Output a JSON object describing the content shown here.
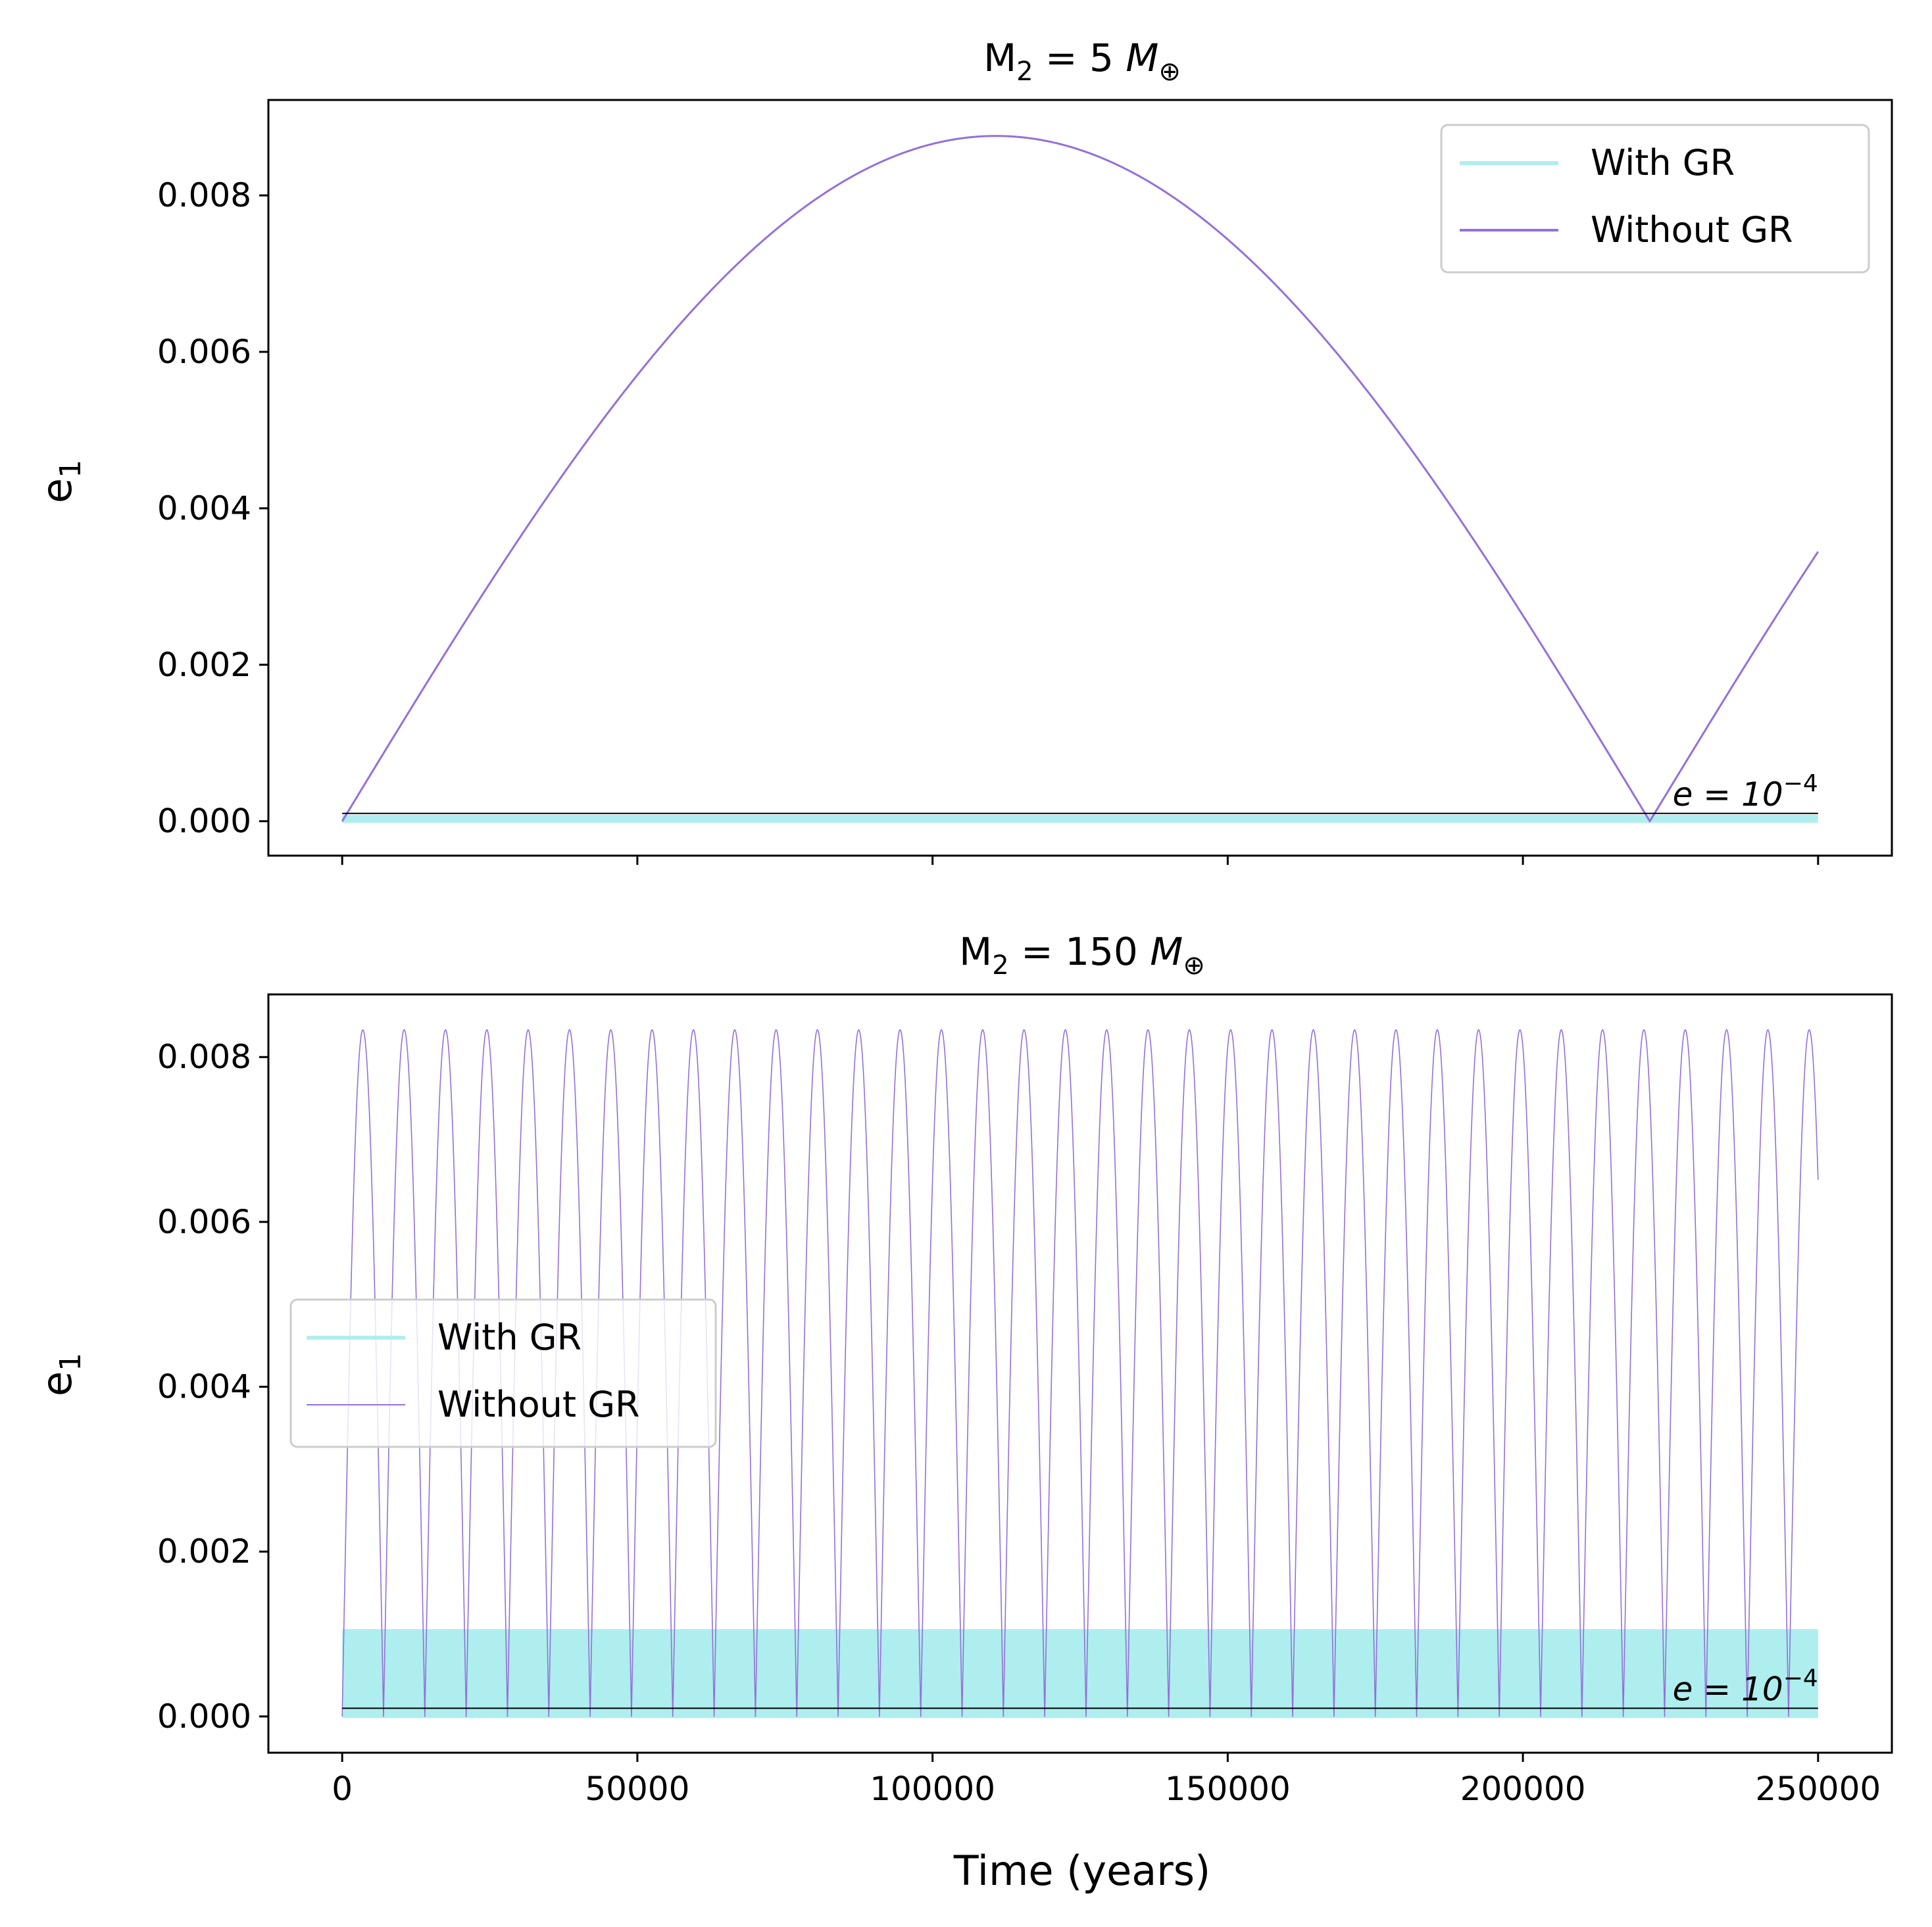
{
  "chart_data": [
    {
      "type": "line",
      "title": {
        "prefix": "M",
        "subscript": "2",
        "text": " = 5 ",
        "unit": "M",
        "unit_subscript": "⊕"
      },
      "ylabel": {
        "base": "e",
        "subscript": "1"
      },
      "xlabel": "",
      "xlim": [
        -12500,
        262500
      ],
      "ylim": [
        -0.00044,
        0.00922
      ],
      "x_ticks": [
        0,
        50000,
        100000,
        150000,
        200000,
        250000
      ],
      "x_tick_labels_visible": false,
      "y_ticks": [
        0.0,
        0.002,
        0.004,
        0.006,
        0.008
      ],
      "y_tick_labels": [
        "0.000",
        "0.002",
        "0.004",
        "0.006",
        "0.008"
      ],
      "legend": {
        "position": "upper right",
        "entries": [
          "With GR",
          "Without GR"
        ]
      },
      "colors": {
        "with_gr": "#afeeee",
        "without_gr": "#9370db",
        "threshold": "#000000"
      },
      "threshold": {
        "value": 0.0001,
        "label_base": "e = 10",
        "label_exp": "−4",
        "x_range": [
          0,
          250000
        ]
      },
      "series": [
        {
          "name": "With GR",
          "model": "band",
          "x_range": [
            0,
            250000
          ],
          "min": 0.0,
          "max": 6e-05,
          "line_width": 5
        },
        {
          "name": "Without GR",
          "model": "abs_sine",
          "x_range": [
            0,
            250000
          ],
          "amplitude": 0.00876,
          "period": 221500,
          "line_width": 3
        }
      ]
    },
    {
      "type": "line",
      "title": {
        "prefix": "M",
        "subscript": "2",
        "text": " = 150 ",
        "unit": "M",
        "unit_subscript": "⊕"
      },
      "ylabel": {
        "base": "e",
        "subscript": "1"
      },
      "xlabel": "Time (years)",
      "xlim": [
        -12500,
        262500
      ],
      "ylim": [
        -0.00044,
        0.00876
      ],
      "x_ticks": [
        0,
        50000,
        100000,
        150000,
        200000,
        250000
      ],
      "x_tick_labels": [
        "0",
        "50000",
        "100000",
        "150000",
        "200000",
        "250000"
      ],
      "x_tick_labels_visible": true,
      "y_ticks": [
        0.0,
        0.002,
        0.004,
        0.006,
        0.008
      ],
      "y_tick_labels": [
        "0.000",
        "0.002",
        "0.004",
        "0.006",
        "0.008"
      ],
      "legend": {
        "position": "center left",
        "entries": [
          "With GR",
          "Without GR"
        ]
      },
      "colors": {
        "with_gr": "#afeeee",
        "without_gr": "#9370db",
        "threshold": "#000000"
      },
      "threshold": {
        "value": 0.0001,
        "label_base": "e = 10",
        "label_exp": "−4",
        "x_range": [
          0,
          250000
        ]
      },
      "series": [
        {
          "name": "With GR",
          "model": "band",
          "x_range": [
            0,
            250000
          ],
          "min": 0.0,
          "max": 0.00104,
          "line_width": 5
        },
        {
          "name": "Without GR",
          "model": "abs_sine",
          "x_range": [
            0,
            250000
          ],
          "amplitude": 0.00833,
          "period": 7000,
          "line_width": 1.6
        }
      ]
    }
  ]
}
